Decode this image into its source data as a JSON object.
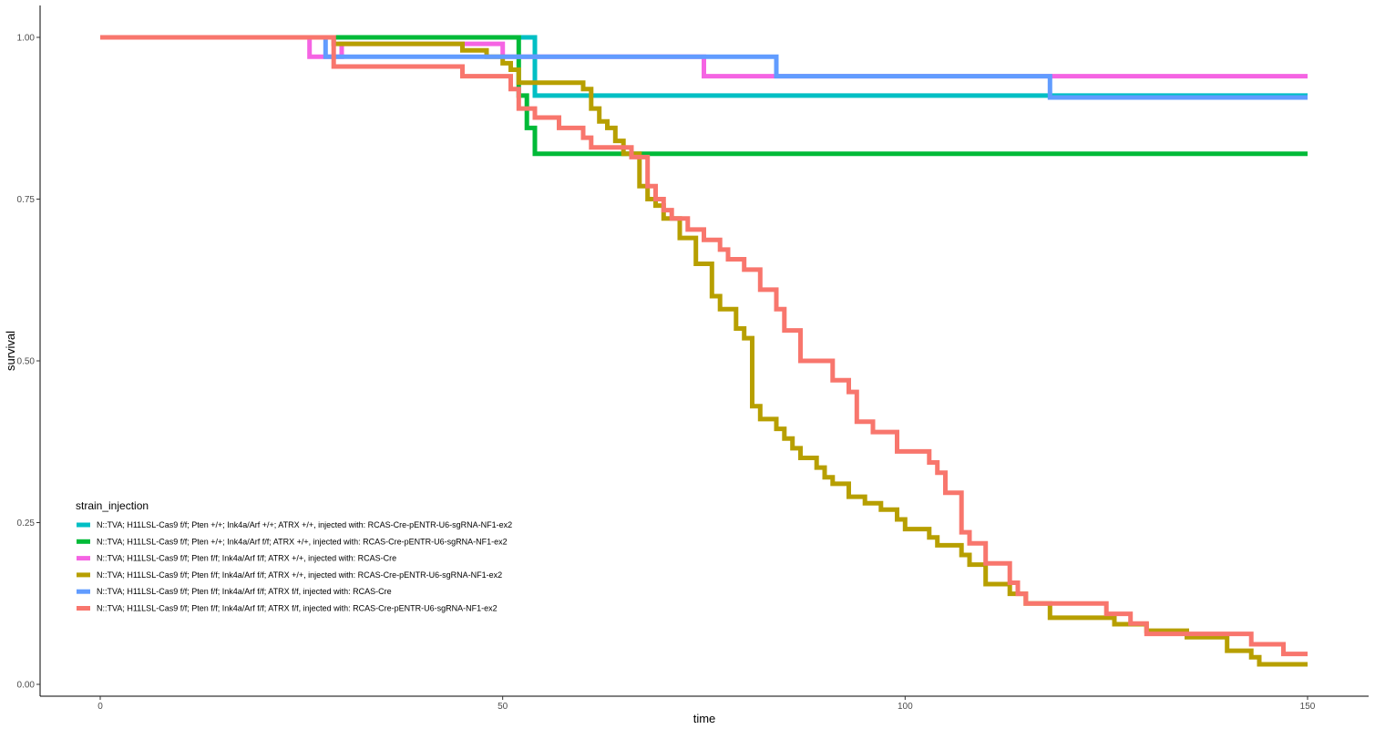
{
  "chart_data": {
    "type": "line",
    "step": true,
    "xlabel": "time",
    "ylabel": "survival",
    "xlim": [
      -7.5,
      157.5
    ],
    "ylim": [
      -0.02,
      1.05
    ],
    "x_ticks": [
      0,
      50,
      100,
      150
    ],
    "x_tick_labels": [
      "0",
      "50",
      "100",
      "150"
    ],
    "y_ticks": [
      0.0,
      0.25,
      0.5,
      0.75,
      1.0
    ],
    "y_tick_labels": [
      "0.00",
      "0.25",
      "0.50",
      "0.75",
      "1.00"
    ],
    "grid": false,
    "legend_title": "strain_injection",
    "legend_position": "bottom-left",
    "series": [
      {
        "name": "N::TVA; H11LSL-Cas9 f/f; Pten +/+; Ink4a/Arf +/+; ATRX +/+, injected with: RCAS-Cre-pENTR-U6-sgRNA-NF1-ex2",
        "color": "#00BFC4",
        "points": [
          [
            0,
            1.0
          ],
          [
            54,
            1.0
          ],
          [
            54,
            0.91
          ],
          [
            150,
            0.91
          ]
        ]
      },
      {
        "name": "N::TVA; H11LSL-Cas9 f/f; Pten +/+; Ink4a/Arf f/f; ATRX +/+, injected with: RCAS-Cre-pENTR-U6-sgRNA-NF1-ex2",
        "color": "#00BA38",
        "points": [
          [
            0,
            1.0
          ],
          [
            52,
            1.0
          ],
          [
            52,
            0.91
          ],
          [
            53,
            0.91
          ],
          [
            53,
            0.86
          ],
          [
            54,
            0.86
          ],
          [
            54,
            0.82
          ],
          [
            150,
            0.82
          ]
        ]
      },
      {
        "name": "N::TVA; H11LSL-Cas9 f/f; Pten f/f; Ink4a/Arf f/f; ATRX +/+, injected with: RCAS-Cre",
        "color": "#F564E3",
        "points": [
          [
            0,
            1.0
          ],
          [
            26,
            1.0
          ],
          [
            26,
            0.97
          ],
          [
            30,
            0.97
          ],
          [
            30,
            0.99
          ],
          [
            50,
            0.99
          ],
          [
            50,
            0.97
          ],
          [
            75,
            0.97
          ],
          [
            75,
            0.94
          ],
          [
            150,
            0.94
          ]
        ]
      },
      {
        "name": "N::TVA; H11LSL-Cas9 f/f; Pten f/f; Ink4a/Arf f/f; ATRX +/+, injected with: RCAS-Cre-pENTR-U6-sgRNA-NF1-ex2",
        "color": "#B79F00",
        "points": [
          [
            0,
            1.0
          ],
          [
            29,
            1.0
          ],
          [
            29,
            0.99
          ],
          [
            45,
            0.99
          ],
          [
            45,
            0.98
          ],
          [
            48,
            0.98
          ],
          [
            48,
            0.97
          ],
          [
            50,
            0.97
          ],
          [
            50,
            0.96
          ],
          [
            51,
            0.96
          ],
          [
            51,
            0.95
          ],
          [
            52,
            0.95
          ],
          [
            52,
            0.93
          ],
          [
            56,
            0.93
          ],
          [
            56,
            0.93
          ],
          [
            60,
            0.93
          ],
          [
            60,
            0.92
          ],
          [
            61,
            0.92
          ],
          [
            61,
            0.89
          ],
          [
            62,
            0.89
          ],
          [
            62,
            0.87
          ],
          [
            63,
            0.87
          ],
          [
            63,
            0.86
          ],
          [
            64,
            0.86
          ],
          [
            64,
            0.84
          ],
          [
            65,
            0.84
          ],
          [
            65,
            0.82
          ],
          [
            67,
            0.82
          ],
          [
            67,
            0.77
          ],
          [
            68,
            0.77
          ],
          [
            68,
            0.75
          ],
          [
            69,
            0.75
          ],
          [
            69,
            0.74
          ],
          [
            70,
            0.74
          ],
          [
            70,
            0.72
          ],
          [
            72,
            0.72
          ],
          [
            72,
            0.69
          ],
          [
            74,
            0.69
          ],
          [
            74,
            0.65
          ],
          [
            76,
            0.65
          ],
          [
            76,
            0.6
          ],
          [
            77,
            0.6
          ],
          [
            77,
            0.58
          ],
          [
            79,
            0.58
          ],
          [
            79,
            0.55
          ],
          [
            80,
            0.55
          ],
          [
            80,
            0.535
          ],
          [
            81,
            0.535
          ],
          [
            81,
            0.43
          ],
          [
            82,
            0.43
          ],
          [
            82,
            0.41
          ],
          [
            84,
            0.41
          ],
          [
            84,
            0.395
          ],
          [
            85,
            0.395
          ],
          [
            85,
            0.38
          ],
          [
            86,
            0.38
          ],
          [
            86,
            0.365
          ],
          [
            87,
            0.365
          ],
          [
            87,
            0.35
          ],
          [
            89,
            0.35
          ],
          [
            89,
            0.335
          ],
          [
            90,
            0.335
          ],
          [
            90,
            0.32
          ],
          [
            91,
            0.32
          ],
          [
            91,
            0.31
          ],
          [
            93,
            0.31
          ],
          [
            93,
            0.29
          ],
          [
            95,
            0.29
          ],
          [
            95,
            0.28
          ],
          [
            97,
            0.28
          ],
          [
            97,
            0.27
          ],
          [
            99,
            0.27
          ],
          [
            99,
            0.255
          ],
          [
            100,
            0.255
          ],
          [
            100,
            0.24
          ],
          [
            103,
            0.24
          ],
          [
            103,
            0.227
          ],
          [
            104,
            0.227
          ],
          [
            104,
            0.215
          ],
          [
            107,
            0.215
          ],
          [
            107,
            0.2
          ],
          [
            108,
            0.2
          ],
          [
            108,
            0.185
          ],
          [
            110,
            0.185
          ],
          [
            110,
            0.155
          ],
          [
            113,
            0.155
          ],
          [
            113,
            0.14
          ],
          [
            115,
            0.14
          ],
          [
            115,
            0.125
          ],
          [
            118,
            0.125
          ],
          [
            118,
            0.103
          ],
          [
            126,
            0.103
          ],
          [
            126,
            0.093
          ],
          [
            130,
            0.093
          ],
          [
            130,
            0.083
          ],
          [
            135,
            0.083
          ],
          [
            135,
            0.073
          ],
          [
            140,
            0.073
          ],
          [
            140,
            0.052
          ],
          [
            143,
            0.052
          ],
          [
            143,
            0.042
          ],
          [
            144,
            0.042
          ],
          [
            144,
            0.031
          ],
          [
            150,
            0.031
          ]
        ]
      },
      {
        "name": "N::TVA; H11LSL-Cas9 f/f; Pten f/f; Ink4a/Arf f/f; ATRX f/f, injected with: RCAS-Cre",
        "color": "#619CFF",
        "points": [
          [
            0,
            1.0
          ],
          [
            28,
            1.0
          ],
          [
            28,
            0.97
          ],
          [
            84,
            0.97
          ],
          [
            84,
            0.94
          ],
          [
            118,
            0.94
          ],
          [
            118,
            0.907
          ],
          [
            150,
            0.907
          ]
        ]
      },
      {
        "name": "N::TVA; H11LSL-Cas9 f/f; Pten f/f; Ink4a/Arf f/f; ATRX f/f, injected with: RCAS-Cre-pENTR-U6-sgRNA-NF1-ex2",
        "color": "#F8766D",
        "points": [
          [
            0,
            1.0
          ],
          [
            29,
            1.0
          ],
          [
            29,
            0.955
          ],
          [
            45,
            0.955
          ],
          [
            45,
            0.94
          ],
          [
            51,
            0.94
          ],
          [
            51,
            0.92
          ],
          [
            52,
            0.92
          ],
          [
            52,
            0.89
          ],
          [
            54,
            0.89
          ],
          [
            54,
            0.876
          ],
          [
            57,
            0.876
          ],
          [
            57,
            0.86
          ],
          [
            60,
            0.86
          ],
          [
            60,
            0.845
          ],
          [
            61,
            0.845
          ],
          [
            61,
            0.83
          ],
          [
            64,
            0.83
          ],
          [
            64,
            0.83
          ],
          [
            66,
            0.83
          ],
          [
            66,
            0.815
          ],
          [
            68,
            0.815
          ],
          [
            68,
            0.77
          ],
          [
            69,
            0.77
          ],
          [
            69,
            0.75
          ],
          [
            70,
            0.75
          ],
          [
            70,
            0.733
          ],
          [
            71,
            0.733
          ],
          [
            71,
            0.72
          ],
          [
            73,
            0.72
          ],
          [
            73,
            0.703
          ],
          [
            75,
            0.703
          ],
          [
            75,
            0.687
          ],
          [
            77,
            0.687
          ],
          [
            77,
            0.672
          ],
          [
            78,
            0.672
          ],
          [
            78,
            0.657
          ],
          [
            80,
            0.657
          ],
          [
            80,
            0.641
          ],
          [
            82,
            0.641
          ],
          [
            82,
            0.61
          ],
          [
            84,
            0.61
          ],
          [
            84,
            0.58
          ],
          [
            85,
            0.58
          ],
          [
            85,
            0.547
          ],
          [
            87,
            0.547
          ],
          [
            87,
            0.5
          ],
          [
            91,
            0.5
          ],
          [
            91,
            0.47
          ],
          [
            93,
            0.47
          ],
          [
            93,
            0.452
          ],
          [
            94,
            0.452
          ],
          [
            94,
            0.406
          ],
          [
            96,
            0.406
          ],
          [
            96,
            0.39
          ],
          [
            99,
            0.39
          ],
          [
            99,
            0.36
          ],
          [
            103,
            0.36
          ],
          [
            103,
            0.343
          ],
          [
            104,
            0.343
          ],
          [
            104,
            0.327
          ],
          [
            105,
            0.327
          ],
          [
            105,
            0.296
          ],
          [
            107,
            0.296
          ],
          [
            107,
            0.235
          ],
          [
            108,
            0.235
          ],
          [
            108,
            0.218
          ],
          [
            110,
            0.218
          ],
          [
            110,
            0.187
          ],
          [
            113,
            0.187
          ],
          [
            113,
            0.157
          ],
          [
            114,
            0.157
          ],
          [
            114,
            0.14
          ],
          [
            115,
            0.14
          ],
          [
            115,
            0.125
          ],
          [
            125,
            0.125
          ],
          [
            125,
            0.109
          ],
          [
            128,
            0.109
          ],
          [
            128,
            0.094
          ],
          [
            130,
            0.094
          ],
          [
            130,
            0.078
          ],
          [
            143,
            0.078
          ],
          [
            143,
            0.062
          ],
          [
            147,
            0.062
          ],
          [
            147,
            0.047
          ],
          [
            150,
            0.047
          ]
        ]
      }
    ]
  }
}
